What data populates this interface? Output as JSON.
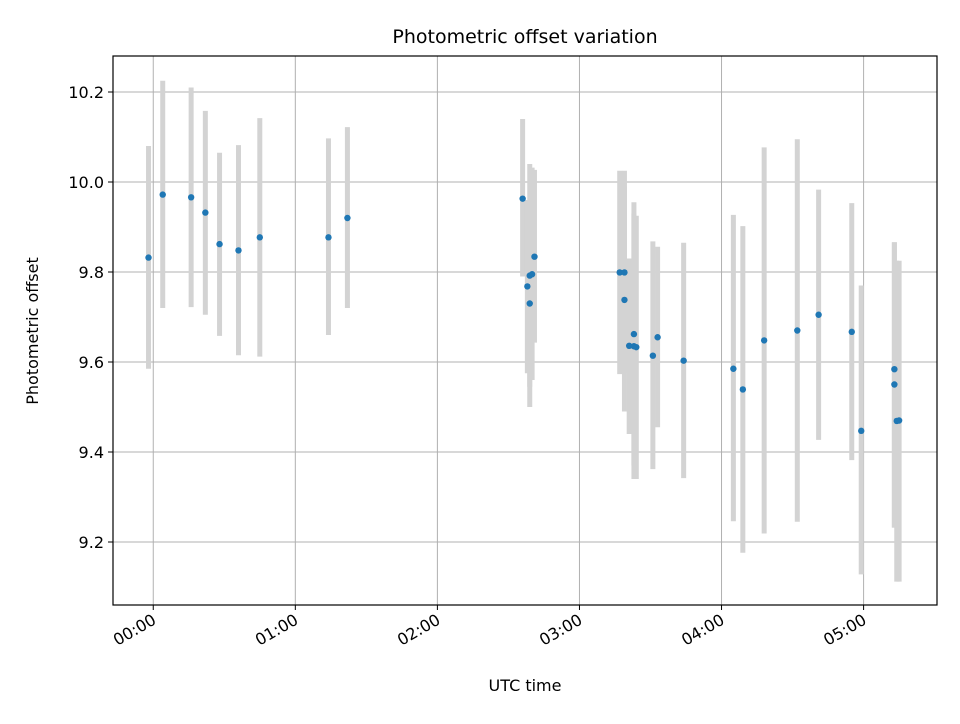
{
  "chart_data": {
    "type": "scatter",
    "title": "Photometric offset variation",
    "xlabel": "UTC time",
    "ylabel": "Photometric offset",
    "x_unit": "HH:MM UTC",
    "xlim": [
      "23:43",
      "05:31"
    ],
    "ylim": [
      9.06,
      10.28
    ],
    "grid": true,
    "colors": {
      "point": "#1f77b4",
      "errorbar": "#d3d3d3",
      "grid": "#b0b0b0"
    },
    "x_ticks": [
      "00:00",
      "01:00",
      "02:00",
      "03:00",
      "04:00",
      "05:00"
    ],
    "y_ticks": [
      "9.2",
      "9.4",
      "9.6",
      "9.8",
      "10.0",
      "10.2"
    ],
    "series": [
      {
        "points": [
          {
            "x": "23:58",
            "y": 9.832,
            "lo": 9.585,
            "hi": 10.08
          },
          {
            "x": "00:04",
            "y": 9.972,
            "lo": 9.72,
            "hi": 10.225
          },
          {
            "x": "00:16",
            "y": 9.966,
            "lo": 9.722,
            "hi": 10.21
          },
          {
            "x": "00:22",
            "y": 9.932,
            "lo": 9.705,
            "hi": 10.158
          },
          {
            "x": "00:28",
            "y": 9.862,
            "lo": 9.658,
            "hi": 10.065
          },
          {
            "x": "00:36",
            "y": 9.848,
            "lo": 9.615,
            "hi": 10.082
          },
          {
            "x": "00:45",
            "y": 9.877,
            "lo": 9.612,
            "hi": 10.142
          },
          {
            "x": "01:14",
            "y": 9.877,
            "lo": 9.66,
            "hi": 10.097
          },
          {
            "x": "01:22",
            "y": 9.92,
            "lo": 9.72,
            "hi": 10.122
          },
          {
            "x": "02:36",
            "y": 9.963,
            "lo": 9.79,
            "hi": 10.14
          },
          {
            "x": "02:38",
            "y": 9.768,
            "lo": 9.575,
            "hi": 9.96
          },
          {
            "x": "02:39",
            "y": 9.73,
            "lo": 9.5,
            "hi": 9.96
          },
          {
            "x": "02:39",
            "y": 9.792,
            "lo": 9.545,
            "hi": 10.04
          },
          {
            "x": "02:40",
            "y": 9.795,
            "lo": 9.56,
            "hi": 10.032
          },
          {
            "x": "02:41",
            "y": 9.834,
            "lo": 9.643,
            "hi": 10.027
          },
          {
            "x": "03:17",
            "y": 9.799,
            "lo": 9.573,
            "hi": 10.025
          },
          {
            "x": "03:19",
            "y": 9.799,
            "lo": 9.575,
            "hi": 10.025
          },
          {
            "x": "03:19",
            "y": 9.738,
            "lo": 9.49,
            "hi": 9.99
          },
          {
            "x": "03:21",
            "y": 9.636,
            "lo": 9.44,
            "hi": 9.83
          },
          {
            "x": "03:23",
            "y": 9.662,
            "lo": 9.37,
            "hi": 9.955
          },
          {
            "x": "03:23",
            "y": 9.635,
            "lo": 9.34,
            "hi": 9.93
          },
          {
            "x": "03:24",
            "y": 9.633,
            "lo": 9.34,
            "hi": 9.925
          },
          {
            "x": "03:31",
            "y": 9.614,
            "lo": 9.362,
            "hi": 9.868
          },
          {
            "x": "03:33",
            "y": 9.655,
            "lo": 9.455,
            "hi": 9.856
          },
          {
            "x": "03:44",
            "y": 9.603,
            "lo": 9.342,
            "hi": 9.865
          },
          {
            "x": "04:05",
            "y": 9.585,
            "lo": 9.246,
            "hi": 9.927
          },
          {
            "x": "04:09",
            "y": 9.539,
            "lo": 9.176,
            "hi": 9.902
          },
          {
            "x": "04:18",
            "y": 9.648,
            "lo": 9.219,
            "hi": 10.077
          },
          {
            "x": "04:32",
            "y": 9.67,
            "lo": 9.245,
            "hi": 10.095
          },
          {
            "x": "04:41",
            "y": 9.705,
            "lo": 9.427,
            "hi": 9.983
          },
          {
            "x": "04:55",
            "y": 9.667,
            "lo": 9.382,
            "hi": 9.953
          },
          {
            "x": "04:59",
            "y": 9.447,
            "lo": 9.128,
            "hi": 9.77
          },
          {
            "x": "05:13",
            "y": 9.584,
            "lo": 9.232,
            "hi": 9.866
          },
          {
            "x": "05:13",
            "y": 9.55,
            "lo": 9.232,
            "hi": 9.866
          },
          {
            "x": "05:14",
            "y": 9.469,
            "lo": 9.112,
            "hi": 9.825
          },
          {
            "x": "05:15",
            "y": 9.47,
            "lo": 9.112,
            "hi": 9.825
          }
        ]
      }
    ]
  }
}
